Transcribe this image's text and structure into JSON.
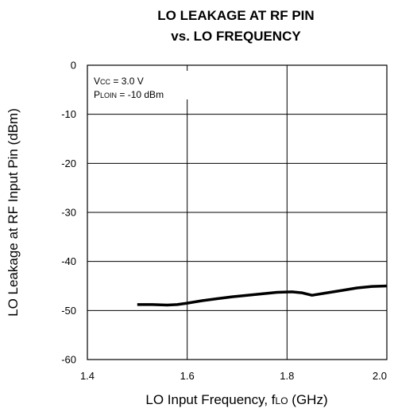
{
  "chart_data": {
    "type": "line",
    "title": [
      "LO LEAKAGE AT RF PIN",
      "vs. LO FREQUENCY"
    ],
    "xlabel": {
      "text": "LO Input Frequency, f",
      "sub": "LO",
      "unit": " (GHz)"
    },
    "ylabel": {
      "text": "LO Leakage at RF Input Pin",
      "sub": "",
      "unit": " (dBm)"
    },
    "xlim": [
      1.4,
      2.0
    ],
    "ylim": [
      -60,
      0
    ],
    "xticks": [
      1.4,
      1.6,
      1.8,
      2.0
    ],
    "xtick_labels": [
      "1.4",
      "1.6",
      "1.8",
      "2.0"
    ],
    "yticks": [
      0,
      -10,
      -20,
      -30,
      -40,
      -50,
      -60
    ],
    "ytick_labels": [
      "0",
      "-10",
      "-20",
      "-30",
      "-40",
      "-50",
      "-60"
    ],
    "grid": true,
    "annotations": [
      {
        "main": "V",
        "sub": "CC",
        "rest": " = 3.0 V"
      },
      {
        "main": "P",
        "sub": "LOIN",
        "rest": " = -10 dBm"
      }
    ],
    "series": [
      {
        "x": [
          1.5,
          1.53,
          1.56,
          1.58,
          1.6,
          1.63,
          1.66,
          1.69,
          1.72,
          1.75,
          1.78,
          1.81,
          1.83,
          1.85,
          1.88,
          1.91,
          1.94,
          1.97,
          2.0
        ],
        "y": [
          -48.8,
          -48.8,
          -48.9,
          -48.8,
          -48.5,
          -48.0,
          -47.6,
          -47.2,
          -46.9,
          -46.6,
          -46.3,
          -46.2,
          -46.4,
          -46.9,
          -46.4,
          -45.9,
          -45.4,
          -45.1,
          -45.0
        ],
        "color": "#000000"
      }
    ]
  }
}
